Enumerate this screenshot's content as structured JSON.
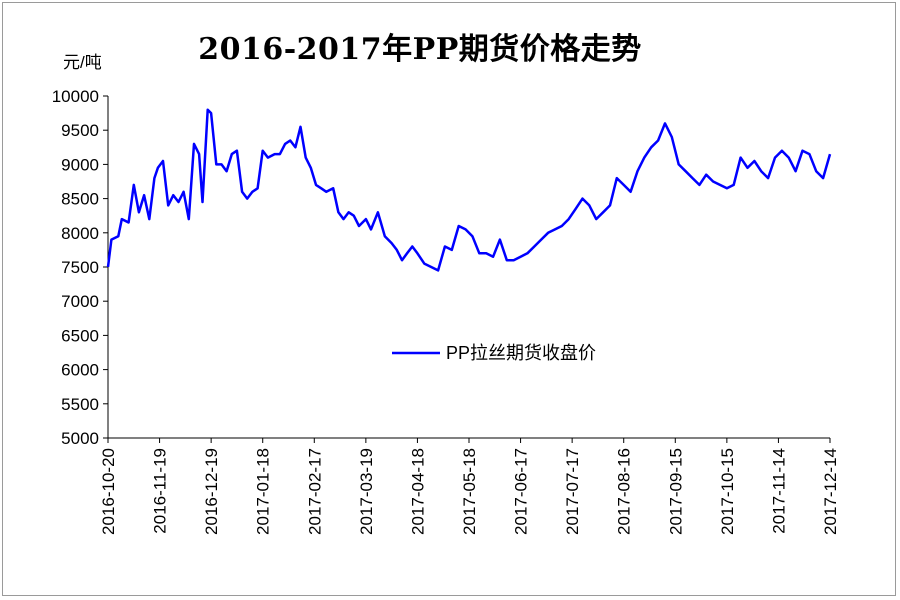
{
  "chart_data": {
    "type": "line",
    "title": "2016-2017年PP期货价格走势",
    "ylabel": "元/吨",
    "xlabel": "",
    "ylim": [
      5000,
      10000
    ],
    "yticks": [
      5000,
      5500,
      6000,
      6500,
      7000,
      7500,
      8000,
      8500,
      9000,
      9500,
      10000
    ],
    "xticks": [
      "2016-10-20",
      "2016-11-19",
      "2016-12-19",
      "2017-01-18",
      "2017-02-17",
      "2017-03-19",
      "2017-04-18",
      "2017-05-18",
      "2017-06-17",
      "2017-07-17",
      "2017-08-16",
      "2017-09-15",
      "2017-10-15",
      "2017-11-14",
      "2017-12-14"
    ],
    "legend_position": "center-right",
    "grid": false,
    "series": [
      {
        "name": "PP拉丝期货收盘价",
        "color": "#0000ff",
        "x": [
          "2016-10-20",
          "2016-10-22",
          "2016-10-26",
          "2016-10-28",
          "2016-11-01",
          "2016-11-04",
          "2016-11-07",
          "2016-11-10",
          "2016-11-13",
          "2016-11-16",
          "2016-11-18",
          "2016-11-21",
          "2016-11-24",
          "2016-11-27",
          "2016-11-30",
          "2016-12-03",
          "2016-12-06",
          "2016-12-09",
          "2016-12-12",
          "2016-12-14",
          "2016-12-17",
          "2016-12-19",
          "2016-12-22",
          "2016-12-25",
          "2016-12-28",
          "2016-12-31",
          "2017-01-03",
          "2017-01-06",
          "2017-01-09",
          "2017-01-12",
          "2017-01-15",
          "2017-01-18",
          "2017-01-21",
          "2017-01-25",
          "2017-01-28",
          "2017-01-31",
          "2017-02-03",
          "2017-02-06",
          "2017-02-09",
          "2017-02-12",
          "2017-02-15",
          "2017-02-18",
          "2017-02-21",
          "2017-02-24",
          "2017-02-28",
          "2017-03-03",
          "2017-03-06",
          "2017-03-09",
          "2017-03-12",
          "2017-03-15",
          "2017-03-19",
          "2017-03-22",
          "2017-03-26",
          "2017-03-30",
          "2017-04-03",
          "2017-04-06",
          "2017-04-09",
          "2017-04-12",
          "2017-04-15",
          "2017-04-18",
          "2017-04-22",
          "2017-04-26",
          "2017-04-30",
          "2017-05-04",
          "2017-05-08",
          "2017-05-12",
          "2017-05-16",
          "2017-05-20",
          "2017-05-24",
          "2017-05-28",
          "2017-06-01",
          "2017-06-05",
          "2017-06-09",
          "2017-06-13",
          "2017-06-17",
          "2017-06-21",
          "2017-06-25",
          "2017-06-29",
          "2017-07-03",
          "2017-07-07",
          "2017-07-11",
          "2017-07-15",
          "2017-07-19",
          "2017-07-23",
          "2017-07-27",
          "2017-07-31",
          "2017-08-04",
          "2017-08-08",
          "2017-08-12",
          "2017-08-16",
          "2017-08-20",
          "2017-08-24",
          "2017-08-28",
          "2017-09-01",
          "2017-09-05",
          "2017-09-09",
          "2017-09-13",
          "2017-09-17",
          "2017-09-21",
          "2017-09-25",
          "2017-09-29",
          "2017-10-03",
          "2017-10-07",
          "2017-10-11",
          "2017-10-15",
          "2017-10-19",
          "2017-10-23",
          "2017-10-27",
          "2017-10-31",
          "2017-11-04",
          "2017-11-08",
          "2017-11-12",
          "2017-11-16",
          "2017-11-20",
          "2017-11-24",
          "2017-11-28",
          "2017-12-02",
          "2017-12-06",
          "2017-12-10",
          "2017-12-14"
        ],
        "values": [
          7500,
          7900,
          7950,
          8200,
          8150,
          8700,
          8300,
          8550,
          8200,
          8800,
          8950,
          9050,
          8400,
          8550,
          8450,
          8600,
          8200,
          9300,
          9150,
          8450,
          9800,
          9750,
          9000,
          9000,
          8900,
          9150,
          9200,
          8600,
          8500,
          8600,
          8650,
          9200,
          9100,
          9150,
          9150,
          9300,
          9350,
          9250,
          9550,
          9100,
          8950,
          8700,
          8650,
          8600,
          8650,
          8300,
          8200,
          8300,
          8250,
          8100,
          8200,
          8050,
          8300,
          7950,
          7850,
          7750,
          7600,
          7700,
          7800,
          7700,
          7550,
          7500,
          7450,
          7800,
          7750,
          8100,
          8050,
          7950,
          7700,
          7700,
          7650,
          7900,
          7600,
          7600,
          7650,
          7700,
          7800,
          7900,
          8000,
          8050,
          8100,
          8200,
          8350,
          8500,
          8400,
          8200,
          8300,
          8400,
          8800,
          8700,
          8600,
          8900,
          9100,
          9250,
          9350,
          9600,
          9400,
          9000,
          8900,
          8800,
          8700,
          8850,
          8750,
          8700,
          8650,
          8700,
          9100,
          8950,
          9050,
          8900,
          8800,
          9100,
          9200,
          9100,
          8900,
          9200,
          9150,
          8900,
          8800,
          9150
        ]
      }
    ]
  }
}
